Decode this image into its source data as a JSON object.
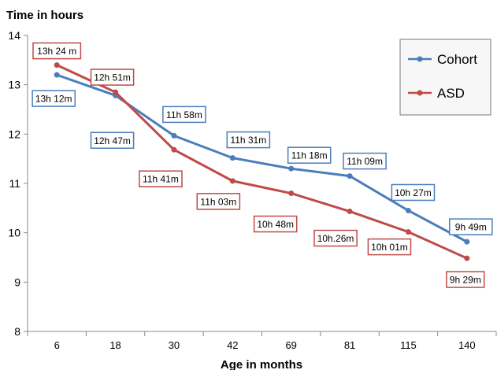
{
  "chart_data": {
    "type": "line",
    "title": "",
    "ylabel": "Time in hours",
    "xlabel": "Age in months",
    "categories": [
      "6",
      "18",
      "30",
      "42",
      "69",
      "81",
      "115",
      "140"
    ],
    "ylim": [
      8,
      14
    ],
    "yticks": [
      8,
      9,
      10,
      11,
      12,
      13,
      14
    ],
    "grid": false,
    "legend_position": "top-right",
    "series": [
      {
        "name": "Cohort",
        "color": "#4a7ebb",
        "values": [
          13.2,
          12.783,
          11.967,
          11.517,
          11.3,
          11.15,
          10.45,
          9.817
        ],
        "labels": [
          "13h 12m",
          "12h 47m",
          "11h 58m",
          "11h 31m",
          "11h 18m",
          "11h 09m",
          "10h 27m",
          "9h  49m"
        ]
      },
      {
        "name": "ASD",
        "color": "#be4b48",
        "values": [
          13.4,
          12.85,
          11.683,
          11.05,
          10.8,
          10.433,
          10.017,
          9.483
        ],
        "labels": [
          "13h 24 m",
          "12h 51m",
          "11h 41m",
          "11h 03m",
          "10h 48m",
          "10h.26m",
          "10h 01m",
          "9h 29m"
        ]
      }
    ]
  }
}
